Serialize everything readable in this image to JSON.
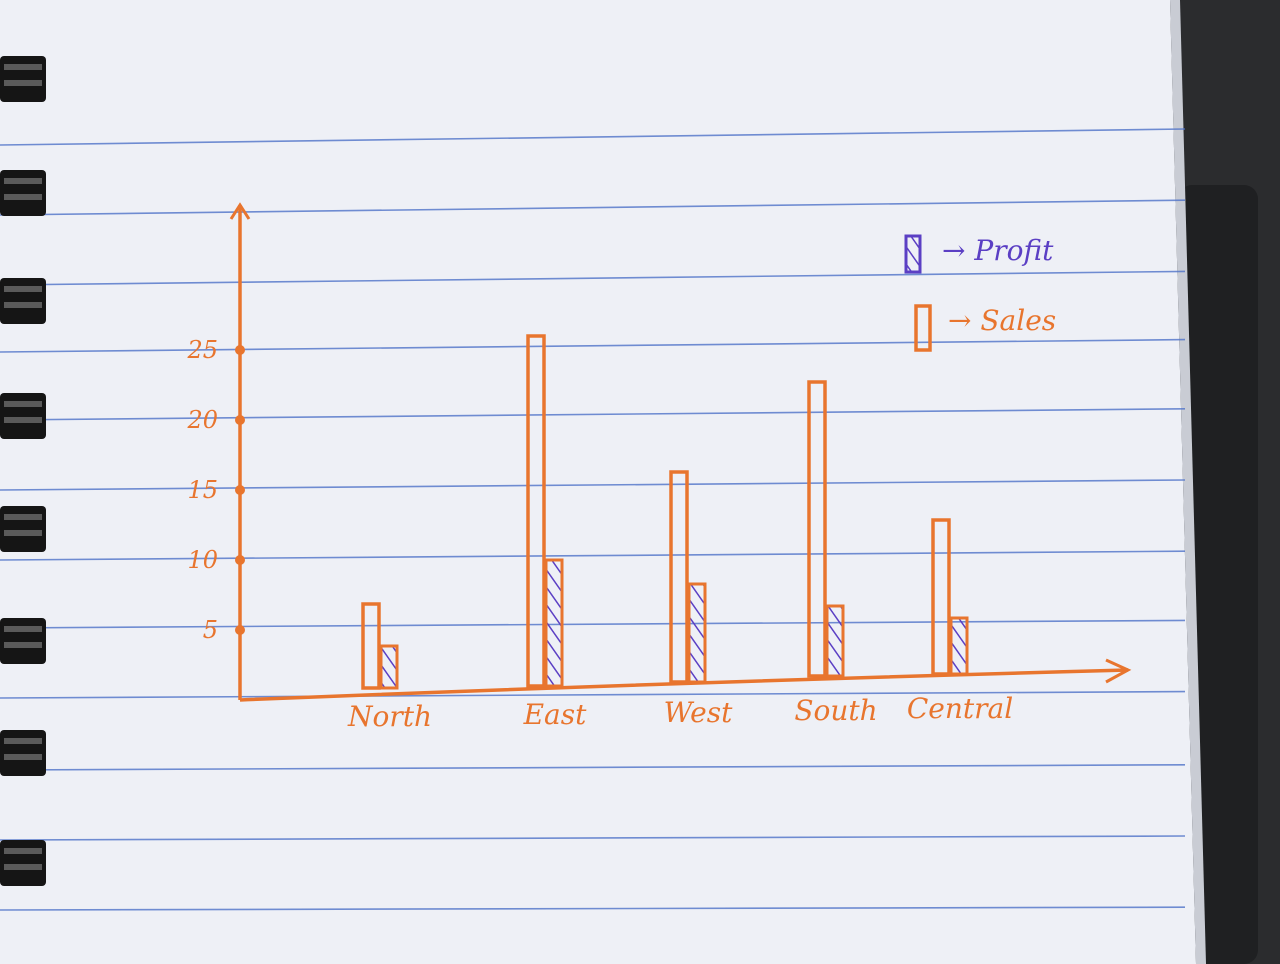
{
  "colors": {
    "ink_sales": "#e8752e",
    "ink_profit": "#5b3fc4",
    "paper": "#eef0f6",
    "rule_line": "#4f73c9",
    "desk": "#2b2c2e",
    "binding": "#151515"
  },
  "legend": {
    "profit_label": "→ Profit",
    "sales_label": "→ Sales",
    "profit_icon": "hatched-bar-icon",
    "sales_icon": "outline-bar-icon"
  },
  "chart_data": {
    "type": "bar",
    "categories": [
      "North",
      "East",
      "West",
      "South",
      "Central"
    ],
    "series": [
      {
        "name": "Sales",
        "values": [
          6,
          25,
          15,
          21,
          11
        ]
      },
      {
        "name": "Profit",
        "values": [
          3,
          9,
          7,
          5,
          4
        ]
      }
    ],
    "y_ticks": [
      5,
      10,
      15,
      20,
      25
    ],
    "ylim": [
      0,
      30
    ],
    "title": "",
    "xlabel": "",
    "ylabel": "",
    "grid": false,
    "legend_position": "top-right"
  }
}
